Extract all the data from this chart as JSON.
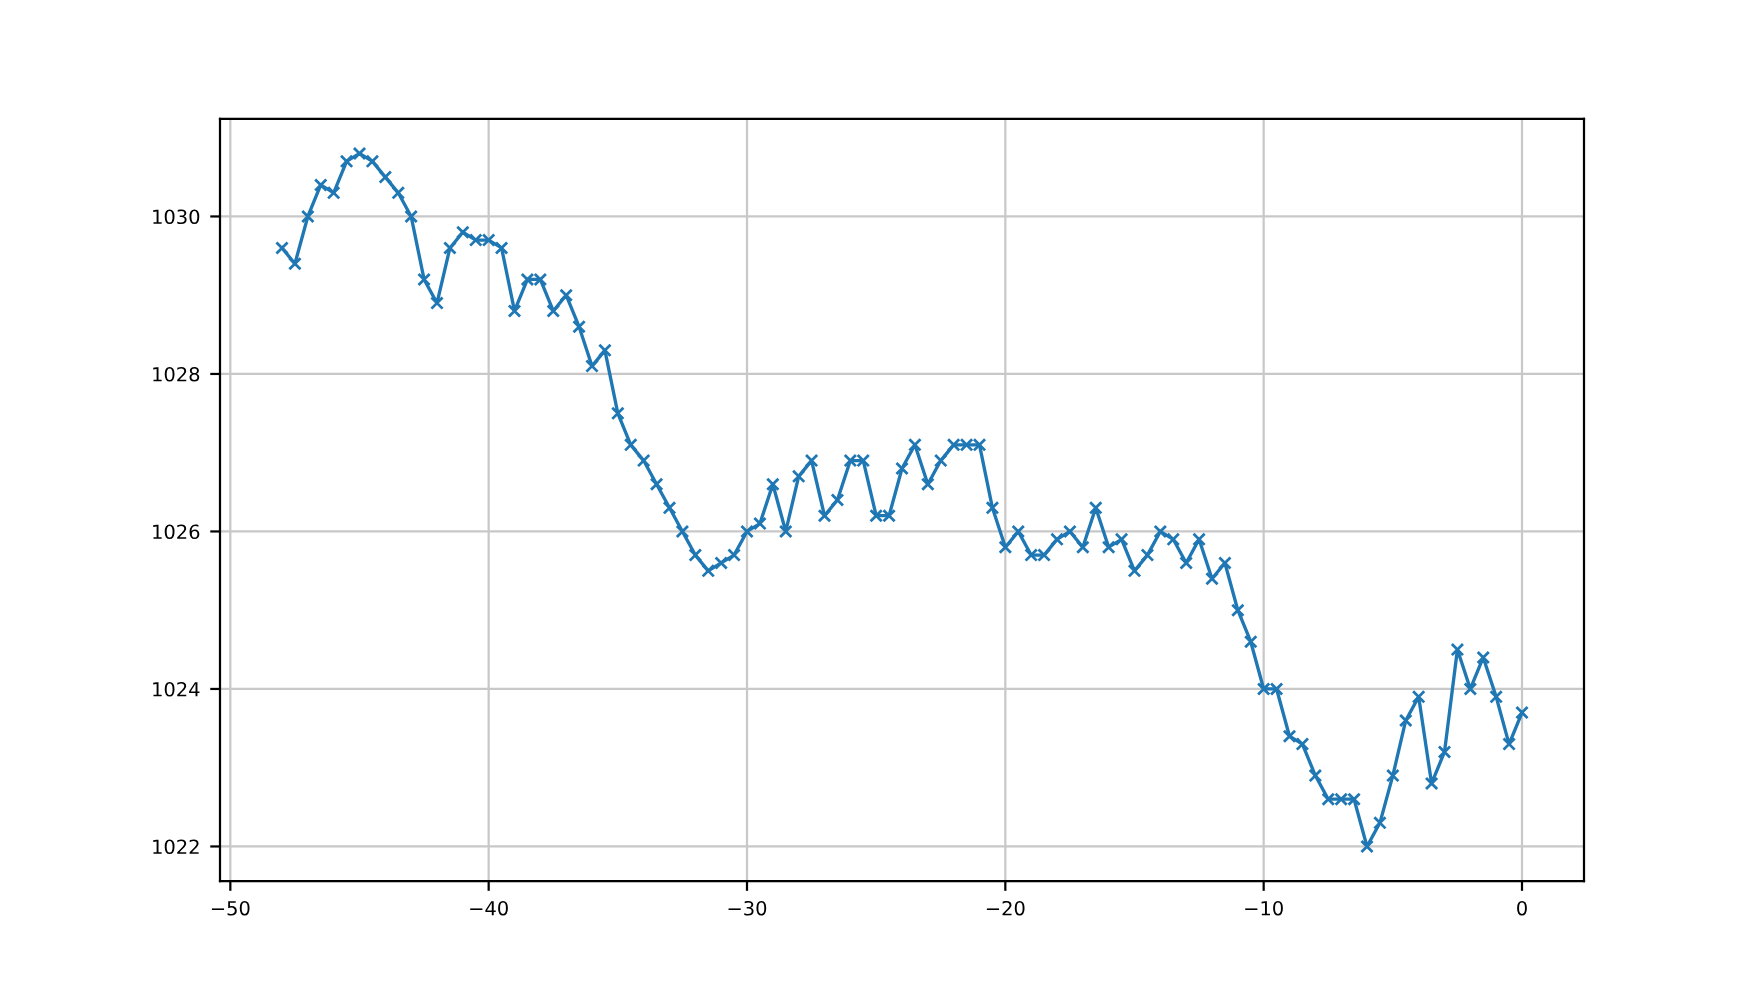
{
  "chart_data": {
    "type": "line",
    "marker": "cross",
    "grid": true,
    "x": [
      -48,
      -47.5,
      -47,
      -46.5,
      -46,
      -45.5,
      -45,
      -44.5,
      -44,
      -43.5,
      -43,
      -42.5,
      -42,
      -41.5,
      -41,
      -40.5,
      -40,
      -39.5,
      -39,
      -38.5,
      -38,
      -37.5,
      -37,
      -36.5,
      -36,
      -35.5,
      -35,
      -34.5,
      -34,
      -33.5,
      -33,
      -32.5,
      -32,
      -31.5,
      -31,
      -30.5,
      -30,
      -29.5,
      -29,
      -28.5,
      -28,
      -27.5,
      -27,
      -26.5,
      -26,
      -25.5,
      -25,
      -24.5,
      -24,
      -23.5,
      -23,
      -22.5,
      -22,
      -21.5,
      -21,
      -20.5,
      -20,
      -19.5,
      -19,
      -18.5,
      -18,
      -17.5,
      -17,
      -16.5,
      -16,
      -15.5,
      -15,
      -14.5,
      -14,
      -13.5,
      -13,
      -12.5,
      -12,
      -11.5,
      -11,
      -10.5,
      -10,
      -9.5,
      -9,
      -8.5,
      -8,
      -7.5,
      -7,
      -6.5,
      -6,
      -5.5,
      -5,
      -4.5,
      -4,
      -3.5,
      -3,
      -2.5,
      -2,
      -1.5,
      -1,
      -0.5,
      0
    ],
    "series": [
      {
        "color": "#1f77b4",
        "values": [
          1029.6,
          1029.4,
          1030.0,
          1030.4,
          1030.3,
          1030.7,
          1030.8,
          1030.7,
          1030.5,
          1030.3,
          1030.0,
          1029.2,
          1028.9,
          1029.6,
          1029.8,
          1029.7,
          1029.7,
          1029.6,
          1028.8,
          1029.2,
          1029.2,
          1028.8,
          1029.0,
          1028.6,
          1028.1,
          1028.3,
          1027.5,
          1027.1,
          1026.9,
          1026.6,
          1026.3,
          1026.0,
          1025.7,
          1025.5,
          1025.6,
          1025.7,
          1026.0,
          1026.1,
          1026.6,
          1026.0,
          1026.7,
          1026.9,
          1026.2,
          1026.4,
          1026.9,
          1026.9,
          1026.2,
          1026.2,
          1026.8,
          1027.1,
          1026.6,
          1026.9,
          1027.1,
          1027.1,
          1027.1,
          1026.3,
          1025.8,
          1026.0,
          1025.7,
          1025.7,
          1025.9,
          1026.0,
          1025.8,
          1026.3,
          1025.8,
          1025.9,
          1025.5,
          1025.7,
          1026.0,
          1025.9,
          1025.6,
          1025.9,
          1025.4,
          1025.6,
          1025.0,
          1024.6,
          1024.0,
          1024.0,
          1023.4,
          1023.3,
          1022.9,
          1022.6,
          1022.6,
          1022.6,
          1022.0,
          1022.3,
          1022.9,
          1023.6,
          1023.9,
          1022.8,
          1023.2,
          1024.5,
          1024.0,
          1024.4,
          1023.9,
          1023.3,
          1023.7
        ]
      }
    ],
    "xlim": [
      -50.4,
      2.4
    ],
    "xticks": [
      {
        "value": -50,
        "label": "−50"
      },
      {
        "value": -40,
        "label": "−40"
      },
      {
        "value": -30,
        "label": "−30"
      },
      {
        "value": -20,
        "label": "−20"
      },
      {
        "value": -10,
        "label": "−10"
      },
      0
    ],
    "ylim": [
      1021.56,
      1031.24
    ],
    "yticks": [
      1022,
      1024,
      1026,
      1028,
      1030
    ]
  }
}
